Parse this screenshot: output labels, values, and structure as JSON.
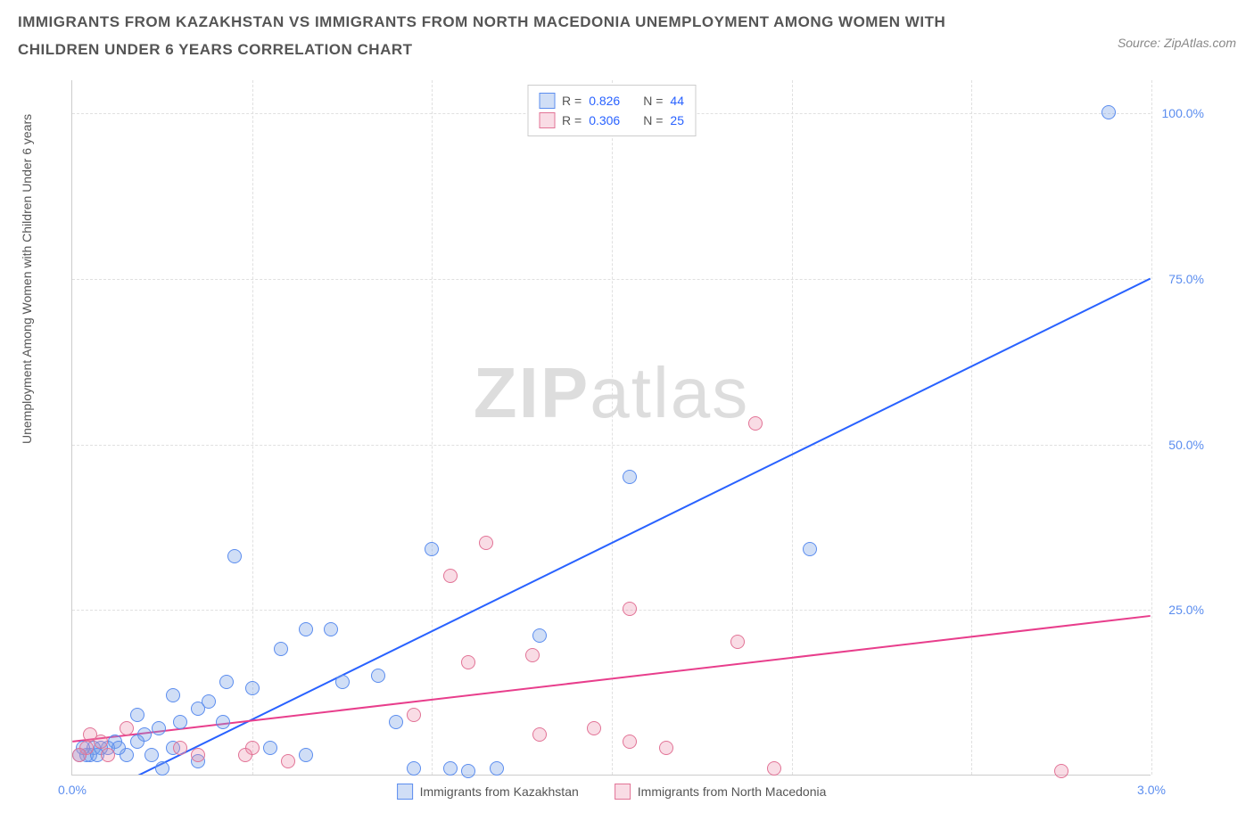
{
  "title": "IMMIGRANTS FROM KAZAKHSTAN VS IMMIGRANTS FROM NORTH MACEDONIA UNEMPLOYMENT AMONG WOMEN WITH CHILDREN UNDER 6 YEARS CORRELATION CHART",
  "source": "Source: ZipAtlas.com",
  "y_axis_label": "Unemployment Among Women with Children Under 6 years",
  "watermark_bold": "ZIP",
  "watermark_light": "atlas",
  "chart": {
    "type": "scatter",
    "xlim": [
      0,
      3.0
    ],
    "ylim": [
      0,
      105
    ],
    "x_ticks": [
      {
        "pos": 0,
        "label": "0.0%"
      },
      {
        "pos": 3.0,
        "label": "3.0%"
      }
    ],
    "x_grid": [
      0.5,
      1.0,
      1.5,
      2.0,
      2.5,
      3.0
    ],
    "y_ticks": [
      {
        "pos": 25,
        "label": "25.0%"
      },
      {
        "pos": 50,
        "label": "50.0%"
      },
      {
        "pos": 75,
        "label": "75.0%"
      },
      {
        "pos": 100,
        "label": "100.0%"
      }
    ],
    "background_color": "#ffffff",
    "grid_color": "#e0e0e0",
    "axis_color": "#cccccc"
  },
  "series": [
    {
      "name": "Immigrants from Kazakstan",
      "color_fill": "rgba(120,160,230,0.35)",
      "color_stroke": "#5b8def",
      "trend_color": "#2962ff",
      "R": "0.826",
      "N": "44",
      "marker_radius": 8,
      "trend": {
        "x1": 0,
        "y1": -5,
        "x2": 3.0,
        "y2": 75
      },
      "points": [
        {
          "x": 2.88,
          "y": 100
        },
        {
          "x": 1.55,
          "y": 45
        },
        {
          "x": 2.05,
          "y": 34
        },
        {
          "x": 0.45,
          "y": 33
        },
        {
          "x": 1.0,
          "y": 34
        },
        {
          "x": 0.72,
          "y": 22
        },
        {
          "x": 0.65,
          "y": 22
        },
        {
          "x": 0.58,
          "y": 19
        },
        {
          "x": 1.3,
          "y": 21
        },
        {
          "x": 0.85,
          "y": 15
        },
        {
          "x": 0.75,
          "y": 14
        },
        {
          "x": 0.43,
          "y": 14
        },
        {
          "x": 0.5,
          "y": 13
        },
        {
          "x": 0.28,
          "y": 12
        },
        {
          "x": 0.38,
          "y": 11
        },
        {
          "x": 0.42,
          "y": 8
        },
        {
          "x": 0.9,
          "y": 8
        },
        {
          "x": 0.35,
          "y": 10
        },
        {
          "x": 0.3,
          "y": 8
        },
        {
          "x": 0.24,
          "y": 7
        },
        {
          "x": 0.2,
          "y": 6
        },
        {
          "x": 0.18,
          "y": 5
        },
        {
          "x": 0.12,
          "y": 5
        },
        {
          "x": 0.1,
          "y": 4
        },
        {
          "x": 0.08,
          "y": 4
        },
        {
          "x": 0.06,
          "y": 4
        },
        {
          "x": 0.15,
          "y": 3
        },
        {
          "x": 0.05,
          "y": 3
        },
        {
          "x": 0.04,
          "y": 3
        },
        {
          "x": 0.07,
          "y": 3
        },
        {
          "x": 0.03,
          "y": 4
        },
        {
          "x": 0.02,
          "y": 3
        },
        {
          "x": 0.13,
          "y": 4
        },
        {
          "x": 0.28,
          "y": 4
        },
        {
          "x": 0.22,
          "y": 3
        },
        {
          "x": 0.55,
          "y": 4
        },
        {
          "x": 0.65,
          "y": 3
        },
        {
          "x": 0.35,
          "y": 2
        },
        {
          "x": 0.25,
          "y": 1
        },
        {
          "x": 1.05,
          "y": 1
        },
        {
          "x": 1.1,
          "y": 0.5
        },
        {
          "x": 1.18,
          "y": 1
        },
        {
          "x": 0.95,
          "y": 1
        },
        {
          "x": 0.18,
          "y": 9
        }
      ]
    },
    {
      "name": "Immigrants from North Macedonia",
      "color_fill": "rgba(235,140,170,0.3)",
      "color_stroke": "#e27396",
      "trend_color": "#e83e8c",
      "R": "0.306",
      "N": "25",
      "marker_radius": 8,
      "trend": {
        "x1": 0,
        "y1": 5,
        "x2": 3.0,
        "y2": 24
      },
      "points": [
        {
          "x": 1.9,
          "y": 53
        },
        {
          "x": 1.15,
          "y": 35
        },
        {
          "x": 1.05,
          "y": 30
        },
        {
          "x": 1.55,
          "y": 25
        },
        {
          "x": 1.85,
          "y": 20
        },
        {
          "x": 1.28,
          "y": 18
        },
        {
          "x": 1.1,
          "y": 17
        },
        {
          "x": 0.95,
          "y": 9
        },
        {
          "x": 1.45,
          "y": 7
        },
        {
          "x": 1.3,
          "y": 6
        },
        {
          "x": 1.55,
          "y": 5
        },
        {
          "x": 1.65,
          "y": 4
        },
        {
          "x": 1.95,
          "y": 1
        },
        {
          "x": 2.75,
          "y": 0.5
        },
        {
          "x": 0.5,
          "y": 4
        },
        {
          "x": 0.48,
          "y": 3
        },
        {
          "x": 0.35,
          "y": 3
        },
        {
          "x": 0.6,
          "y": 2
        },
        {
          "x": 0.3,
          "y": 4
        },
        {
          "x": 0.08,
          "y": 5
        },
        {
          "x": 0.04,
          "y": 4
        },
        {
          "x": 0.05,
          "y": 6
        },
        {
          "x": 0.02,
          "y": 3
        },
        {
          "x": 0.15,
          "y": 7
        },
        {
          "x": 0.1,
          "y": 3
        }
      ]
    }
  ],
  "legend_top": {
    "r_label": "R =",
    "n_label": "N ="
  },
  "legend_bottom": [
    {
      "label": "Immigrants from Kazakhstan",
      "fill": "rgba(120,160,230,0.35)",
      "stroke": "#5b8def"
    },
    {
      "label": "Immigrants from North Macedonia",
      "fill": "rgba(235,140,170,0.3)",
      "stroke": "#e27396"
    }
  ]
}
